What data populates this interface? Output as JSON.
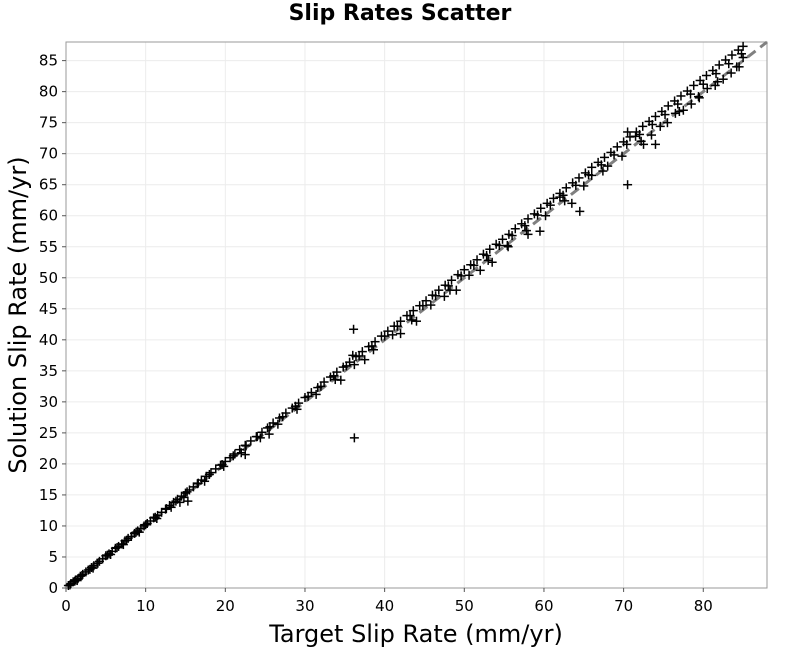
{
  "chart_data": {
    "type": "scatter",
    "title": "Slip Rates Scatter",
    "xlabel": "Target Slip Rate (mm/yr)",
    "ylabel": "Solution Slip Rate (mm/yr)",
    "xlim": [
      0,
      88
    ],
    "ylim": [
      0,
      88
    ],
    "xticks": [
      "0",
      "10",
      "20",
      "30",
      "40",
      "50",
      "60",
      "70",
      "80"
    ],
    "yticks": [
      "0",
      "5",
      "10",
      "15",
      "20",
      "25",
      "30",
      "35",
      "40",
      "45",
      "50",
      "55",
      "60",
      "65",
      "70",
      "75",
      "80",
      "85"
    ],
    "grid": true,
    "marker": "+",
    "reference_line": {
      "style": "dashed",
      "color": "#808080",
      "x": [
        0,
        88
      ],
      "y": [
        0,
        88
      ]
    },
    "series": [
      {
        "points": [
          [
            0.3,
            0.4
          ],
          [
            0.6,
            0.7
          ],
          [
            0.9,
            1.0
          ],
          [
            1.2,
            1.3
          ],
          [
            1.5,
            1.5
          ],
          [
            1.8,
            1.9
          ],
          [
            2.1,
            2.2
          ],
          [
            2.5,
            2.6
          ],
          [
            2.8,
            2.9
          ],
          [
            3.2,
            3.3
          ],
          [
            3.5,
            3.6
          ],
          [
            3.9,
            4.0
          ],
          [
            4.2,
            4.3
          ],
          [
            4.6,
            4.7
          ],
          [
            5.0,
            5.2
          ],
          [
            5.4,
            5.5
          ],
          [
            5.8,
            5.9
          ],
          [
            6.2,
            6.4
          ],
          [
            6.6,
            6.7
          ],
          [
            7.0,
            7.1
          ],
          [
            7.4,
            7.6
          ],
          [
            7.8,
            8.0
          ],
          [
            8.2,
            8.3
          ],
          [
            8.6,
            8.8
          ],
          [
            9.0,
            9.2
          ],
          [
            9.4,
            9.6
          ],
          [
            9.8,
            10.0
          ],
          [
            10.2,
            10.4
          ],
          [
            10.6,
            10.8
          ],
          [
            11.0,
            11.3
          ],
          [
            11.5,
            11.7
          ],
          [
            12.0,
            12.2
          ],
          [
            12.5,
            12.7
          ],
          [
            13.0,
            13.3
          ],
          [
            13.5,
            13.8
          ],
          [
            14.0,
            14.3
          ],
          [
            14.5,
            14.8
          ],
          [
            15.0,
            15.3
          ],
          [
            15.5,
            15.8
          ],
          [
            16.0,
            16.3
          ],
          [
            16.5,
            16.8
          ],
          [
            17.0,
            17.4
          ],
          [
            17.6,
            18.0
          ],
          [
            18.2,
            18.6
          ],
          [
            18.8,
            19.2
          ],
          [
            19.4,
            19.8
          ],
          [
            20.0,
            20.4
          ],
          [
            20.6,
            21.0
          ],
          [
            21.2,
            21.6
          ],
          [
            21.8,
            22.3
          ],
          [
            22.5,
            23.0
          ],
          [
            23.2,
            23.7
          ],
          [
            23.9,
            24.4
          ],
          [
            24.6,
            25.1
          ],
          [
            25.3,
            25.8
          ],
          [
            26.0,
            26.6
          ],
          [
            26.8,
            27.4
          ],
          [
            27.6,
            28.2
          ],
          [
            28.4,
            29.0
          ],
          [
            29.2,
            29.8
          ],
          [
            30.0,
            30.7
          ],
          [
            30.8,
            31.5
          ],
          [
            31.6,
            32.3
          ],
          [
            32.4,
            33.2
          ],
          [
            33.2,
            34.0
          ],
          [
            34.0,
            34.8
          ],
          [
            34.8,
            35.6
          ],
          [
            35.6,
            36.4
          ],
          [
            36.4,
            37.3
          ],
          [
            37.2,
            38.1
          ],
          [
            38.0,
            38.9
          ],
          [
            38.8,
            39.7
          ],
          [
            39.6,
            40.6
          ],
          [
            40.4,
            41.4
          ],
          [
            41.2,
            42.2
          ],
          [
            42.0,
            43.0
          ],
          [
            42.8,
            43.9
          ],
          [
            43.6,
            44.7
          ],
          [
            44.4,
            45.5
          ],
          [
            45.2,
            46.3
          ],
          [
            46.0,
            47.2
          ],
          [
            46.8,
            48.0
          ],
          [
            47.6,
            48.8
          ],
          [
            48.4,
            49.6
          ],
          [
            49.2,
            50.5
          ],
          [
            50.0,
            51.3
          ],
          [
            50.8,
            52.1
          ],
          [
            51.6,
            52.9
          ],
          [
            52.4,
            53.8
          ],
          [
            53.2,
            54.6
          ],
          [
            54.0,
            55.4
          ],
          [
            54.8,
            56.2
          ],
          [
            55.6,
            57.0
          ],
          [
            56.4,
            57.9
          ],
          [
            57.2,
            58.7
          ],
          [
            58.0,
            59.5
          ],
          [
            58.8,
            60.3
          ],
          [
            59.6,
            61.2
          ],
          [
            60.4,
            62.0
          ],
          [
            61.2,
            62.8
          ],
          [
            62.0,
            63.6
          ],
          [
            62.8,
            64.5
          ],
          [
            63.6,
            65.3
          ],
          [
            64.4,
            66.1
          ],
          [
            65.2,
            66.9
          ],
          [
            66.0,
            67.8
          ],
          [
            66.8,
            68.6
          ],
          [
            67.6,
            69.4
          ],
          [
            68.4,
            70.2
          ],
          [
            69.2,
            71.1
          ],
          [
            70.0,
            71.9
          ],
          [
            70.8,
            72.7
          ],
          [
            71.6,
            73.5
          ],
          [
            72.4,
            74.4
          ],
          [
            73.2,
            75.2
          ],
          [
            74.0,
            76.0
          ],
          [
            74.8,
            76.8
          ],
          [
            75.6,
            77.7
          ],
          [
            76.4,
            78.5
          ],
          [
            77.2,
            79.3
          ],
          [
            78.0,
            80.1
          ],
          [
            78.8,
            81.0
          ],
          [
            79.6,
            81.8
          ],
          [
            80.4,
            82.6
          ],
          [
            81.2,
            83.4
          ],
          [
            82.0,
            84.3
          ],
          [
            82.8,
            85.1
          ],
          [
            83.6,
            85.9
          ],
          [
            84.4,
            86.7
          ],
          [
            85.0,
            87.3
          ],
          [
            0.5,
            0.5
          ],
          [
            1.1,
            1.1
          ],
          [
            2.0,
            2.0
          ],
          [
            3.0,
            3.0
          ],
          [
            4.0,
            4.0
          ],
          [
            5.2,
            5.3
          ],
          [
            6.4,
            6.5
          ],
          [
            7.6,
            7.7
          ],
          [
            8.8,
            9.0
          ],
          [
            10.0,
            10.2
          ],
          [
            11.2,
            11.4
          ],
          [
            12.6,
            12.8
          ],
          [
            13.8,
            14.0
          ],
          [
            15.2,
            15.5
          ],
          [
            16.6,
            16.9
          ],
          [
            18.0,
            18.3
          ],
          [
            19.6,
            19.9
          ],
          [
            21.0,
            21.3
          ],
          [
            22.6,
            22.9
          ],
          [
            24.0,
            24.4
          ],
          [
            25.6,
            26.0
          ],
          [
            27.2,
            27.6
          ],
          [
            28.8,
            29.3
          ],
          [
            30.4,
            30.9
          ],
          [
            32.0,
            32.5
          ],
          [
            33.6,
            34.2
          ],
          [
            35.2,
            35.8
          ],
          [
            36.8,
            37.4
          ],
          [
            38.4,
            39.0
          ],
          [
            40.0,
            40.6
          ],
          [
            41.6,
            42.2
          ],
          [
            43.2,
            43.9
          ],
          [
            44.8,
            45.5
          ],
          [
            46.4,
            47.1
          ],
          [
            48.0,
            48.7
          ],
          [
            49.6,
            50.3
          ],
          [
            51.2,
            52.0
          ],
          [
            52.8,
            53.6
          ],
          [
            54.4,
            55.2
          ],
          [
            56.0,
            56.8
          ],
          [
            57.6,
            58.4
          ],
          [
            59.2,
            60.1
          ],
          [
            60.8,
            61.7
          ],
          [
            62.4,
            63.3
          ],
          [
            64.0,
            64.9
          ],
          [
            65.6,
            66.6
          ],
          [
            67.2,
            68.2
          ],
          [
            68.8,
            69.8
          ],
          [
            70.4,
            71.5
          ],
          [
            72.0,
            73.1
          ],
          [
            73.6,
            74.7
          ],
          [
            75.2,
            76.3
          ],
          [
            76.8,
            78.0
          ],
          [
            78.4,
            79.6
          ],
          [
            80.0,
            81.2
          ],
          [
            81.6,
            82.9
          ],
          [
            83.2,
            84.5
          ],
          [
            84.8,
            86.1
          ],
          [
            1.4,
            1.2
          ],
          [
            3.4,
            3.2
          ],
          [
            5.6,
            5.4
          ],
          [
            7.2,
            7.0
          ],
          [
            9.2,
            9.0
          ],
          [
            11.4,
            11.2
          ],
          [
            13.2,
            13.0
          ],
          [
            14.8,
            14.6
          ],
          [
            17.4,
            17.2
          ],
          [
            19.8,
            19.6
          ],
          [
            22.0,
            21.8
          ],
          [
            24.4,
            24.2
          ],
          [
            26.6,
            26.4
          ],
          [
            29.0,
            28.8
          ],
          [
            31.4,
            31.2
          ],
          [
            33.8,
            33.6
          ],
          [
            36.2,
            36.0
          ],
          [
            38.6,
            38.4
          ],
          [
            41.0,
            40.8
          ],
          [
            43.4,
            43.2
          ],
          [
            45.8,
            45.6
          ],
          [
            48.2,
            48.0
          ],
          [
            50.6,
            50.4
          ],
          [
            53.0,
            52.8
          ],
          [
            55.4,
            55.2
          ],
          [
            57.8,
            57.6
          ],
          [
            60.2,
            60.0
          ],
          [
            62.6,
            62.4
          ],
          [
            65.0,
            64.8
          ],
          [
            67.4,
            67.2
          ],
          [
            69.8,
            69.6
          ],
          [
            72.2,
            72.0
          ],
          [
            74.6,
            74.4
          ],
          [
            77.0,
            76.8
          ],
          [
            79.4,
            79.2
          ],
          [
            81.8,
            81.6
          ],
          [
            84.2,
            84.0
          ],
          [
            15.3,
            14.0
          ],
          [
            14.3,
            13.8
          ],
          [
            22.5,
            21.5
          ],
          [
            25.5,
            24.8
          ],
          [
            34.5,
            33.5
          ],
          [
            36.0,
            37.5
          ],
          [
            37.5,
            36.8
          ],
          [
            42.0,
            41.0
          ],
          [
            44.0,
            43.0
          ],
          [
            47.5,
            47.0
          ],
          [
            49.0,
            48.0
          ],
          [
            52.0,
            51.2
          ],
          [
            53.5,
            52.5
          ],
          [
            55.5,
            55.0
          ],
          [
            58.0,
            57.0
          ],
          [
            59.5,
            57.5
          ],
          [
            62.0,
            63.0
          ],
          [
            64.5,
            60.7
          ],
          [
            63.5,
            62.0
          ],
          [
            66.0,
            66.5
          ],
          [
            68.0,
            68.0
          ],
          [
            70.5,
            73.5
          ],
          [
            71.5,
            72.8
          ],
          [
            72.5,
            71.5
          ],
          [
            73.5,
            73.0
          ],
          [
            74.0,
            71.5
          ],
          [
            75.5,
            75.0
          ],
          [
            76.5,
            76.5
          ],
          [
            77.5,
            77.0
          ],
          [
            78.5,
            78.0
          ],
          [
            79.5,
            79.0
          ],
          [
            80.5,
            80.5
          ],
          [
            81.5,
            81.0
          ],
          [
            82.5,
            82.0
          ],
          [
            83.5,
            83.0
          ],
          [
            84.5,
            84.0
          ],
          [
            85.0,
            85.5
          ],
          [
            70.5,
            65.0
          ],
          [
            36.2,
            24.2
          ],
          [
            36.1,
            41.7
          ]
        ]
      }
    ]
  }
}
